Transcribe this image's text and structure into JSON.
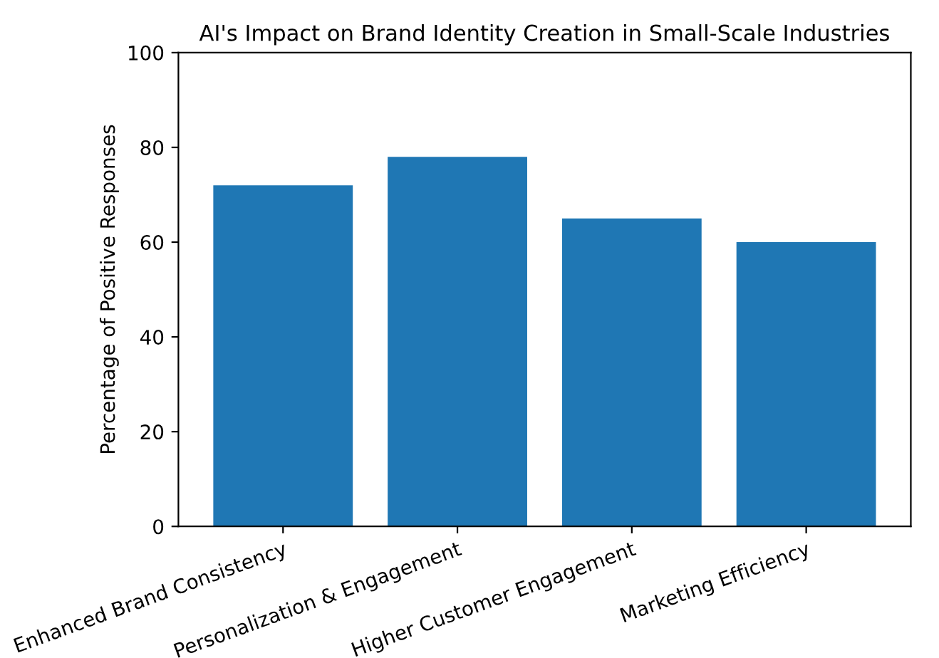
{
  "chart_data": {
    "type": "bar",
    "title": "AI's Impact on Brand Identity Creation in Small-Scale Industries",
    "ylabel": "Percentage of Positive Responses",
    "categories": [
      "Enhanced Brand Consistency",
      "Personalization & Engagement",
      "Higher Customer Engagement",
      "Marketing Efficiency"
    ],
    "values": [
      72,
      78,
      65,
      60
    ],
    "color": "#1f77b4",
    "ylim": [
      0,
      100
    ],
    "yticks": [
      0,
      20,
      40,
      60,
      80,
      100
    ],
    "grid": false,
    "legend": false
  }
}
